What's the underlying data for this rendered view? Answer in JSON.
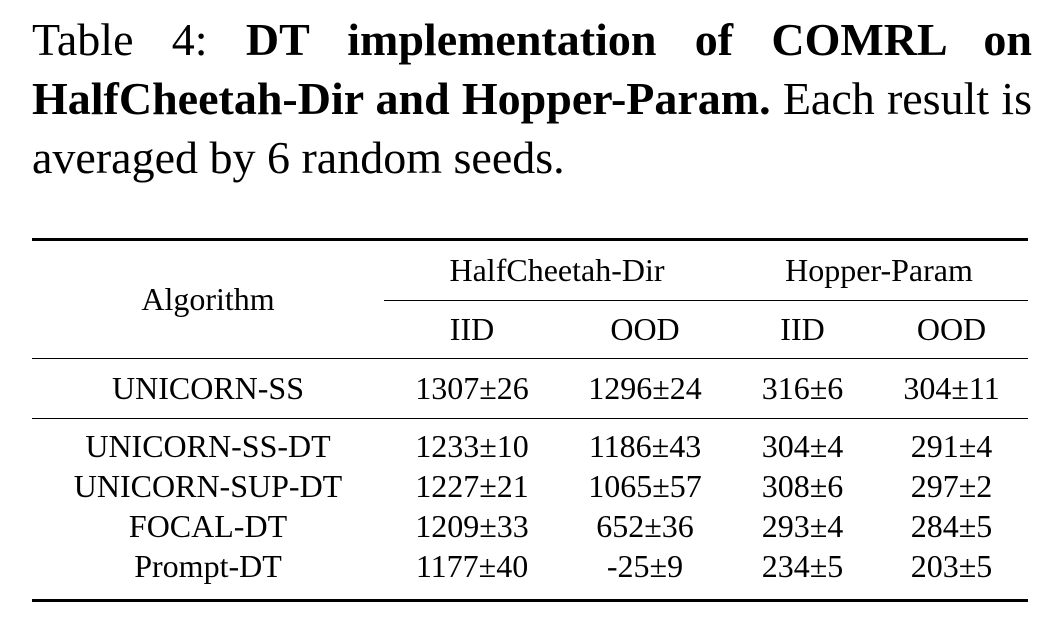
{
  "caption": {
    "label": "Table 4:",
    "title": "DT implementation of COMRL on HalfCheetah-Dir and Hopper-Param.",
    "text": "Each result is averaged by 6 random seeds."
  },
  "table": {
    "header": {
      "algorithm": "Algorithm",
      "groups": [
        "HalfCheetah-Dir",
        "Hopper-Param"
      ],
      "subcolumns": [
        "IID",
        "OOD",
        "IID",
        "OOD"
      ]
    },
    "rows": [
      [
        "UNICORN-SS",
        "1307±26",
        "1296±24",
        "316±6",
        "304±11"
      ],
      [
        "UNICORN-SS-DT",
        "1233±10",
        "1186±43",
        "304±4",
        "291±4"
      ],
      [
        "UNICORN-SUP-DT",
        "1227±21",
        "1065±57",
        "308±6",
        "297±2"
      ],
      [
        "FOCAL-DT",
        "1209±33",
        "652±36",
        "293±4",
        "284±5"
      ],
      [
        "Prompt-DT",
        "1177±40",
        "-25±9",
        "234±5",
        "203±5"
      ]
    ]
  }
}
